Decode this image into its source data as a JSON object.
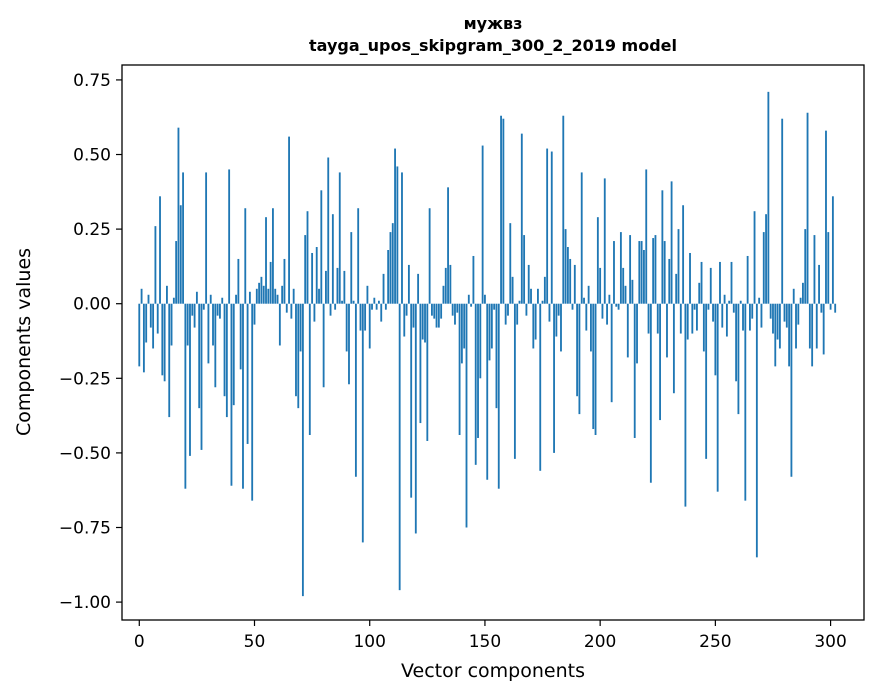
{
  "chart_data": {
    "type": "bar",
    "title": "мужвз",
    "subtitle": "tayga_upos_skipgram_300_2_2019 model",
    "xlabel": "Vector components",
    "ylabel": "Components values",
    "xlim": [
      -7.5,
      314.5
    ],
    "ylim": [
      -1.06,
      0.8
    ],
    "xticks": [
      0,
      50,
      100,
      150,
      200,
      250,
      300
    ],
    "xtick_labels": [
      "0",
      "50",
      "100",
      "150",
      "200",
      "250",
      "300"
    ],
    "yticks": [
      0.75,
      0.5,
      0.25,
      0.0,
      -0.25,
      -0.5,
      -0.75,
      -1.0
    ],
    "ytick_labels": [
      "0.75",
      "0.50",
      "0.25",
      "0.00",
      "−0.25",
      "−0.50",
      "−0.75",
      "−1.00"
    ],
    "grid": false,
    "bar_color": "#1f77b4",
    "values": [
      -0.21,
      0.05,
      -0.23,
      -0.13,
      0.03,
      -0.08,
      -0.15,
      0.26,
      -0.1,
      0.36,
      -0.24,
      -0.26,
      0.06,
      -0.38,
      -0.14,
      0.02,
      0.21,
      0.59,
      0.33,
      0.44,
      -0.62,
      -0.14,
      -0.51,
      -0.04,
      -0.08,
      0.04,
      -0.35,
      -0.49,
      -0.02,
      0.44,
      -0.2,
      0.03,
      -0.14,
      -0.28,
      -0.04,
      -0.05,
      0.02,
      -0.31,
      -0.38,
      0.45,
      -0.61,
      -0.34,
      0.03,
      0.15,
      -0.22,
      -0.62,
      0.32,
      -0.47,
      0.04,
      -0.66,
      -0.07,
      0.05,
      0.07,
      0.09,
      0.06,
      0.29,
      0.05,
      0.14,
      0.32,
      0.05,
      0.03,
      -0.14,
      0.06,
      0.15,
      -0.03,
      0.56,
      -0.05,
      0.05,
      -0.31,
      -0.35,
      -0.16,
      -0.98,
      0.23,
      0.31,
      -0.44,
      0.17,
      -0.06,
      0.19,
      0.05,
      0.38,
      -0.28,
      0.11,
      0.49,
      -0.04,
      0.3,
      -0.02,
      0.12,
      0.44,
      0.01,
      0.11,
      -0.16,
      -0.27,
      0.24,
      0.01,
      -0.58,
      0.32,
      -0.09,
      -0.8,
      -0.09,
      0.06,
      -0.15,
      -0.02,
      0.02,
      -0.02,
      0.01,
      -0.06,
      0.1,
      -0.02,
      0.18,
      0.24,
      0.27,
      0.52,
      0.46,
      -0.96,
      0.44,
      -0.11,
      -0.04,
      0.13,
      -0.65,
      -0.08,
      -0.77,
      0.1,
      -0.4,
      -0.12,
      -0.13,
      -0.46,
      0.32,
      -0.04,
      -0.05,
      -0.08,
      -0.08,
      -0.05,
      0.06,
      0.12,
      0.39,
      0.13,
      -0.04,
      -0.07,
      -0.03,
      -0.44,
      -0.2,
      -0.15,
      -0.75,
      0.03,
      -0.01,
      0.16,
      -0.54,
      -0.45,
      -0.25,
      0.53,
      0.03,
      -0.59,
      -0.19,
      -0.15,
      -0.02,
      -0.35,
      -0.62,
      0.63,
      0.62,
      -0.07,
      -0.04,
      0.27,
      0.09,
      -0.52,
      -0.07,
      0.01,
      0.57,
      0.23,
      -0.04,
      0.13,
      0.05,
      -0.15,
      -0.12,
      0.05,
      -0.56,
      0.01,
      0.09,
      0.52,
      -0.06,
      0.51,
      -0.5,
      -0.11,
      -0.04,
      -0.16,
      0.63,
      0.25,
      0.19,
      0.15,
      -0.02,
      0.13,
      -0.31,
      -0.37,
      0.44,
      0.02,
      -0.09,
      0.06,
      -0.16,
      -0.42,
      -0.44,
      0.29,
      0.12,
      -0.05,
      0.42,
      -0.07,
      0.03,
      -0.33,
      0.21,
      -0.01,
      -0.02,
      0.24,
      0.12,
      0.06,
      -0.18,
      0.23,
      0.08,
      -0.45,
      -0.2,
      0.21,
      0.21,
      0.18,
      0.45,
      -0.1,
      -0.6,
      0.22,
      0.23,
      -0.1,
      -0.39,
      0.38,
      0.21,
      -0.18,
      0.15,
      0.41,
      -0.3,
      0.1,
      0.25,
      -0.1,
      0.33,
      -0.68,
      -0.12,
      0.17,
      -0.1,
      -0.02,
      -0.09,
      0.07,
      0.14,
      -0.16,
      -0.52,
      -0.02,
      0.12,
      -0.06,
      -0.24,
      -0.63,
      0.14,
      -0.08,
      0.03,
      -0.11,
      0.01,
      0.14,
      -0.03,
      -0.26,
      -0.37,
      0.01,
      -0.09,
      -0.66,
      0.16,
      -0.09,
      -0.05,
      0.31,
      -0.85,
      0.02,
      -0.08,
      0.24,
      0.3,
      0.71,
      -0.05,
      -0.1,
      -0.21,
      -0.12,
      -0.15,
      0.62,
      -0.06,
      -0.08,
      -0.21,
      -0.58,
      0.05,
      -0.15,
      -0.07,
      0.02,
      0.07,
      0.25,
      0.64,
      -0.15,
      -0.21,
      0.23,
      -0.15,
      0.13,
      -0.03,
      -0.17,
      0.58,
      0.24,
      -0.02,
      0.36,
      -0.03
    ]
  }
}
